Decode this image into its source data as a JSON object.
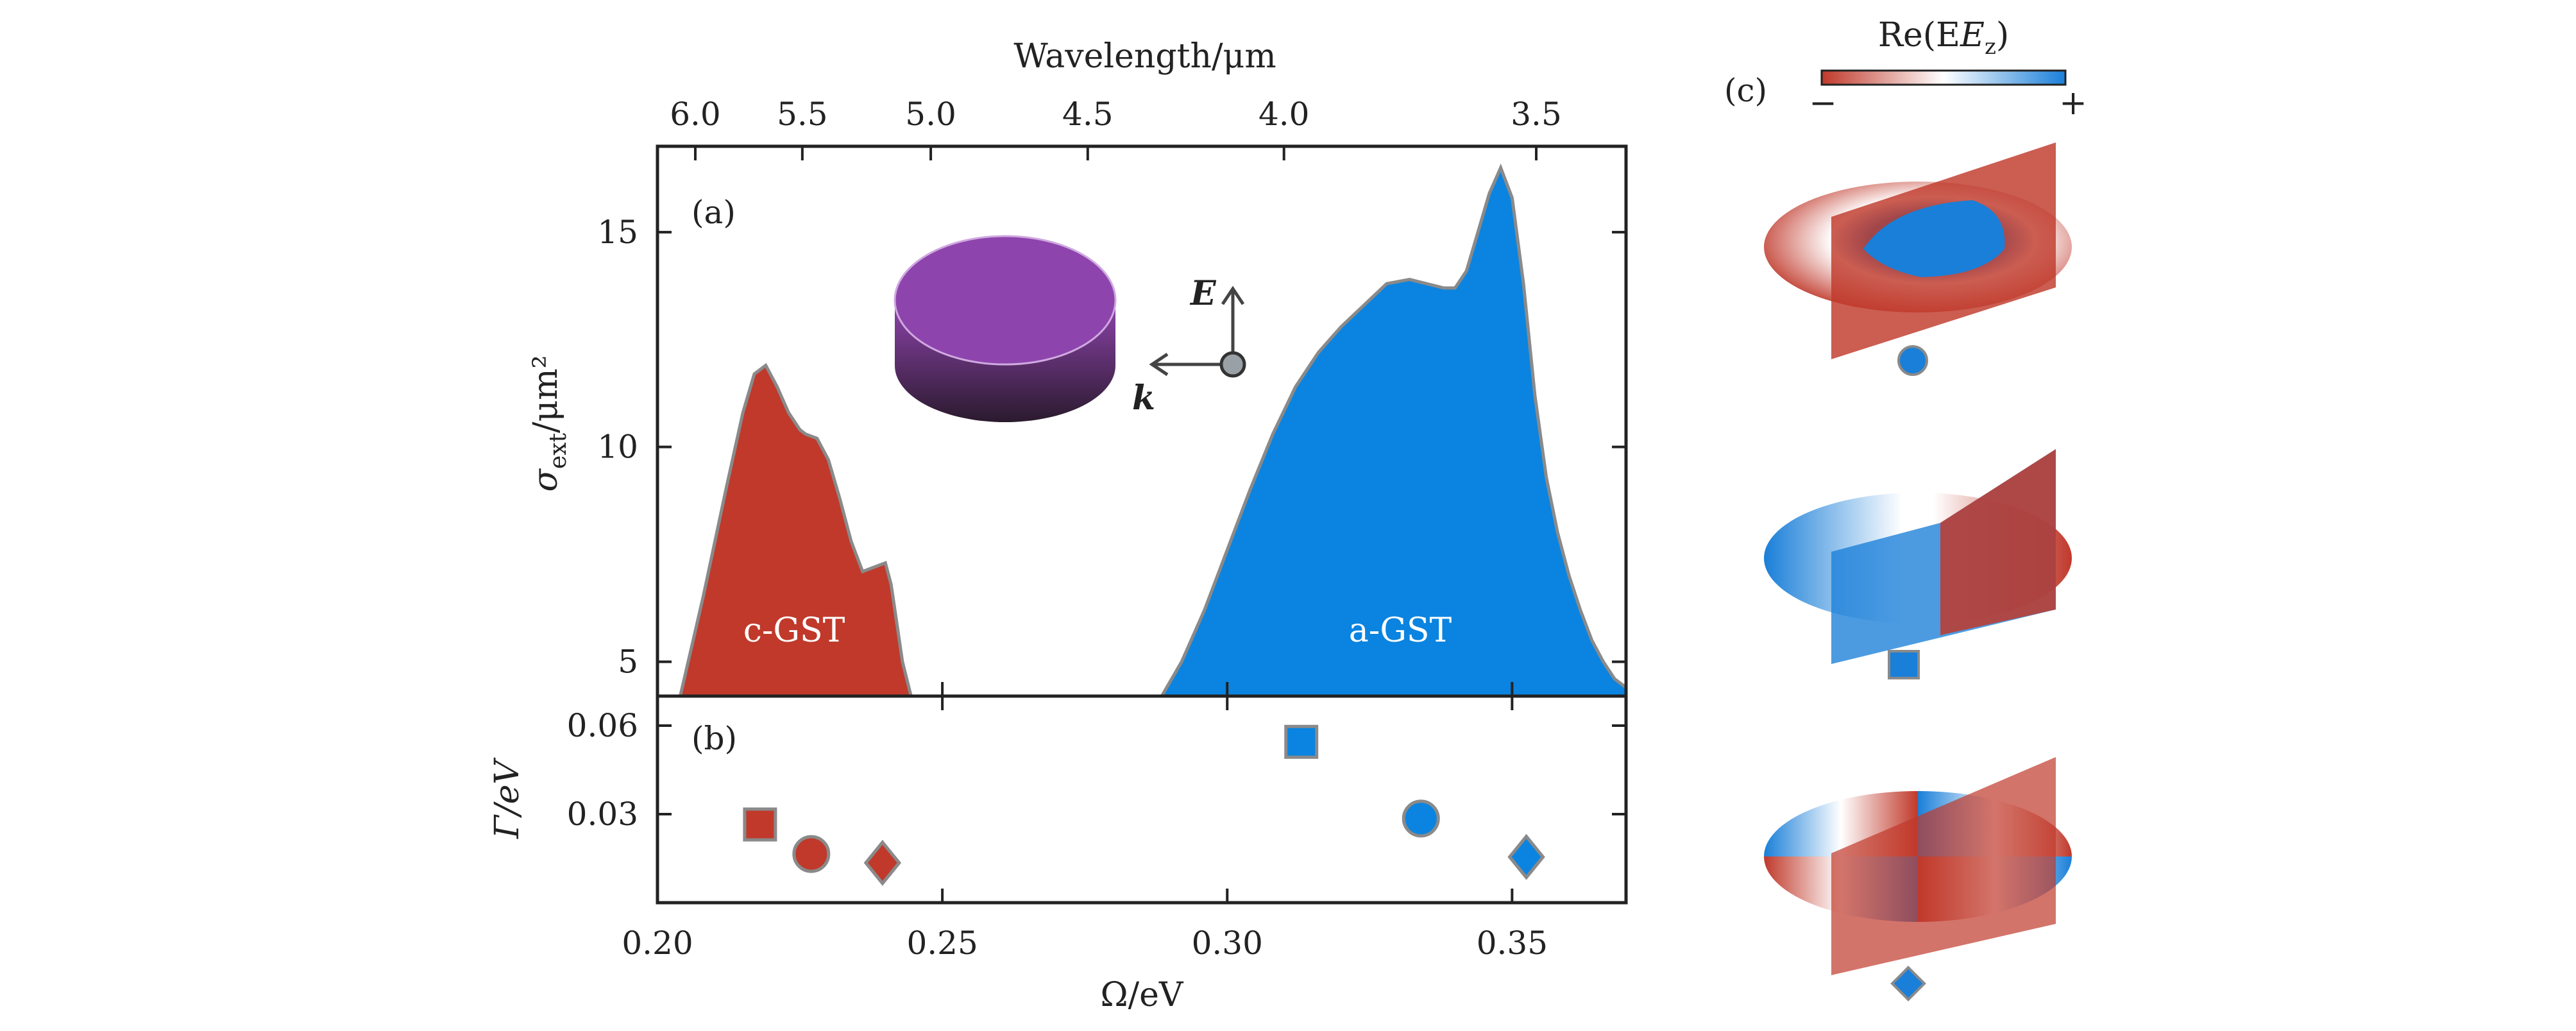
{
  "panels": {
    "a": "(a)",
    "b": "(b)",
    "c": "(c)"
  },
  "top_axis": {
    "title": "Wavelength/μm",
    "ticks": [
      "6.0",
      "5.5",
      "5.0",
      "4.5",
      "4.0",
      "3.5"
    ]
  },
  "inset": {
    "e_label": "E",
    "k_label": "k"
  },
  "colorbar": {
    "title": "Re(E",
    "title_sub": "z",
    "title_close": ")",
    "min_label": "−",
    "max_label": "+",
    "colors": {
      "negative": "#c0392b",
      "zero": "#ffffff",
      "positive": "#1a7fd8"
    }
  },
  "colors": {
    "c_gst": "#c0392b",
    "a_gst": "#0a84e0",
    "outline": "#8a8a8a",
    "disk_top": "#8e44ad"
  },
  "chart_data": [
    {
      "id": "extinction-cross-section",
      "type": "area",
      "xlabel": "Ω/eV",
      "ylabel": "σ_ext/μm²",
      "ylabel_main": "σ",
      "ylabel_sub": "ext",
      "ylabel_unit": "/μm²",
      "xlim": [
        0.2,
        0.37
      ],
      "ylim": [
        4.2,
        17
      ],
      "yticks": [
        5,
        10,
        15
      ],
      "series": [
        {
          "name": "c-GST",
          "x": [
            0.204,
            0.208,
            0.212,
            0.215,
            0.217,
            0.219,
            0.221,
            0.223,
            0.225,
            0.226,
            0.228,
            0.23,
            0.232,
            0.234,
            0.236,
            0.238,
            0.24,
            0.241,
            0.242,
            0.243,
            0.2445
          ],
          "y": [
            4.2,
            6.5,
            9.0,
            10.8,
            11.7,
            11.9,
            11.4,
            10.8,
            10.4,
            10.3,
            10.2,
            9.7,
            8.8,
            7.8,
            7.1,
            7.2,
            7.3,
            6.8,
            5.9,
            5.0,
            4.2
          ]
        },
        {
          "name": "a-GST",
          "x": [
            0.2885,
            0.292,
            0.296,
            0.3,
            0.304,
            0.308,
            0.312,
            0.316,
            0.32,
            0.324,
            0.328,
            0.332,
            0.335,
            0.338,
            0.34,
            0.342,
            0.344,
            0.346,
            0.348,
            0.35,
            0.352,
            0.354,
            0.356,
            0.358,
            0.36,
            0.362,
            0.364,
            0.366,
            0.368,
            0.37
          ],
          "y": [
            4.2,
            5.0,
            6.2,
            7.6,
            9.0,
            10.3,
            11.4,
            12.2,
            12.8,
            13.3,
            13.8,
            13.9,
            13.8,
            13.7,
            13.7,
            14.1,
            15.0,
            15.9,
            16.5,
            15.8,
            13.8,
            11.2,
            9.3,
            8.0,
            7.0,
            6.2,
            5.5,
            5.0,
            4.6,
            4.4
          ]
        }
      ],
      "annotations": [
        "c-GST",
        "a-GST"
      ]
    },
    {
      "id": "linewidth",
      "type": "scatter",
      "xlabel": "Ω/eV",
      "ylabel": "Γ/eV",
      "xlim": [
        0.2,
        0.37
      ],
      "ylim": [
        0.0,
        0.07
      ],
      "xticks": [
        "0.20",
        "0.25",
        "0.30",
        "0.35"
      ],
      "yticks": [
        "0.03",
        "0.06"
      ],
      "points": [
        {
          "x": 0.218,
          "y": 0.0265,
          "marker": "square",
          "color": "#c0392b"
        },
        {
          "x": 0.227,
          "y": 0.0165,
          "marker": "circle",
          "color": "#c0392b"
        },
        {
          "x": 0.2395,
          "y": 0.0135,
          "marker": "diamond",
          "color": "#c0392b"
        },
        {
          "x": 0.313,
          "y": 0.0545,
          "marker": "square",
          "color": "#0a84e0"
        },
        {
          "x": 0.334,
          "y": 0.0285,
          "marker": "circle",
          "color": "#0a84e0"
        },
        {
          "x": 0.3525,
          "y": 0.0155,
          "marker": "diamond",
          "color": "#0a84e0"
        }
      ]
    }
  ]
}
